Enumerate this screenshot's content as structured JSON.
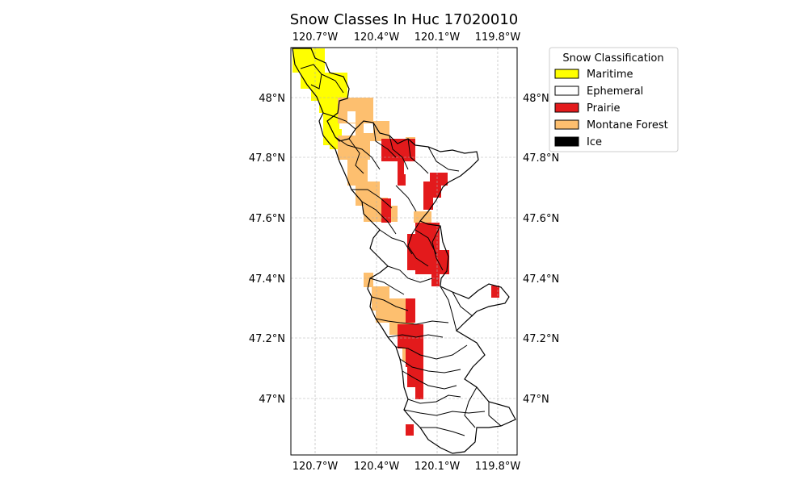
{
  "map": {
    "title": "Snow Classes In Huc 17020010",
    "lon_ticks": [
      "120.7°W",
      "120.4°W",
      "120.1°W",
      "119.8°W"
    ],
    "lat_ticks": [
      "48°N",
      "47.8°N",
      "47.6°N",
      "47.4°N",
      "47.2°N",
      "47°N"
    ],
    "grid": true
  },
  "legend": {
    "title": "Snow Classification",
    "items": [
      {
        "label": "Maritime",
        "color": "#ffff00"
      },
      {
        "label": "Ephemeral",
        "color": "#ffffff"
      },
      {
        "label": "Prairie",
        "color": "#e31a1c"
      },
      {
        "label": "Montane Forest",
        "color": "#fdbf6f"
      },
      {
        "label": "Ice",
        "color": "#000000"
      }
    ]
  },
  "colors": {
    "boundary": "#000000",
    "grid": "#b0b0b0",
    "frame": "#000000"
  }
}
